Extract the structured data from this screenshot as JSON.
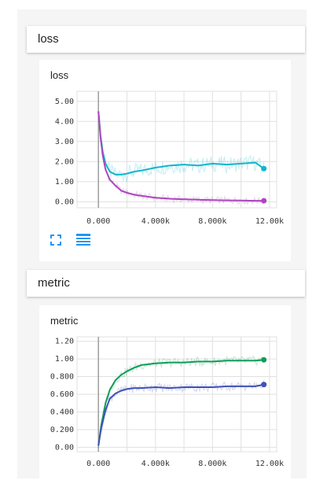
{
  "sections": [
    {
      "header": "loss",
      "card_title": "loss"
    },
    {
      "header": "metric",
      "card_title": "metric"
    }
  ],
  "toolbar": {
    "icons": [
      "fit-domain-icon",
      "data-table-icon"
    ]
  },
  "colors": {
    "teal": "#12b5cb",
    "purple": "#ab47bc",
    "green": "#0f9d58",
    "blue": "#3f51b5",
    "grid": "#e0e0e0",
    "axis": "#9e9e9e"
  },
  "chart_data": [
    {
      "type": "line",
      "title": "loss",
      "xlim": [
        -1500,
        12500
      ],
      "ylim": [
        -0.3,
        5.5
      ],
      "x_ticks": [
        0,
        4000,
        8000,
        12000
      ],
      "x_tick_labels": [
        "0.000",
        "4.000k",
        "8.000k",
        "12.00k"
      ],
      "y_ticks": [
        0,
        1,
        2,
        3,
        4,
        5
      ],
      "y_tick_labels": [
        "0.00",
        "1.00",
        "2.00",
        "3.00",
        "4.00",
        "5.00"
      ],
      "grid": true,
      "series": [
        {
          "color_key": "teal",
          "x": [
            0,
            150,
            300,
            500,
            800,
            1200,
            1600,
            2000,
            2500,
            3000,
            4000,
            5000,
            6000,
            7000,
            8000,
            9000,
            10000,
            11000,
            11600
          ],
          "y": [
            4.5,
            3.3,
            2.5,
            1.9,
            1.5,
            1.35,
            1.35,
            1.4,
            1.5,
            1.55,
            1.7,
            1.8,
            1.85,
            1.8,
            1.9,
            1.85,
            1.9,
            1.95,
            1.65
          ]
        },
        {
          "color_key": "purple",
          "x": [
            0,
            150,
            300,
            500,
            800,
            1200,
            1600,
            2000,
            2500,
            3000,
            4000,
            5000,
            6000,
            7000,
            8000,
            9000,
            10000,
            11000,
            11600
          ],
          "y": [
            4.5,
            3.2,
            2.3,
            1.6,
            1.1,
            0.8,
            0.55,
            0.45,
            0.35,
            0.3,
            0.2,
            0.15,
            0.12,
            0.1,
            0.08,
            0.07,
            0.06,
            0.05,
            0.05
          ]
        }
      ]
    },
    {
      "type": "line",
      "title": "metric",
      "xlim": [
        -1500,
        12500
      ],
      "ylim": [
        -0.05,
        1.25
      ],
      "x_ticks": [
        0,
        4000,
        8000,
        12000
      ],
      "x_tick_labels": [
        "0.000",
        "4.000k",
        "8.000k",
        "12.00k"
      ],
      "y_ticks": [
        0,
        0.2,
        0.4,
        0.6,
        0.8,
        1.0,
        1.2
      ],
      "y_tick_labels": [
        "0.00",
        "0.200",
        "0.400",
        "0.600",
        "0.800",
        "1.00",
        "1.20"
      ],
      "grid": true,
      "series": [
        {
          "color_key": "green",
          "x": [
            0,
            200,
            500,
            800,
            1200,
            1600,
            2000,
            2500,
            3000,
            4000,
            5000,
            6000,
            7000,
            8000,
            9000,
            10000,
            11000,
            11600
          ],
          "y": [
            0.02,
            0.25,
            0.5,
            0.65,
            0.76,
            0.82,
            0.86,
            0.9,
            0.93,
            0.95,
            0.96,
            0.96,
            0.97,
            0.97,
            0.98,
            0.98,
            0.98,
            0.99
          ]
        },
        {
          "color_key": "blue",
          "x": [
            0,
            200,
            500,
            800,
            1200,
            1600,
            2000,
            2500,
            3000,
            4000,
            5000,
            6000,
            7000,
            8000,
            9000,
            10000,
            11000,
            11600
          ],
          "y": [
            0.02,
            0.22,
            0.42,
            0.55,
            0.61,
            0.64,
            0.66,
            0.67,
            0.67,
            0.68,
            0.67,
            0.68,
            0.68,
            0.68,
            0.69,
            0.69,
            0.69,
            0.71
          ]
        }
      ]
    }
  ]
}
